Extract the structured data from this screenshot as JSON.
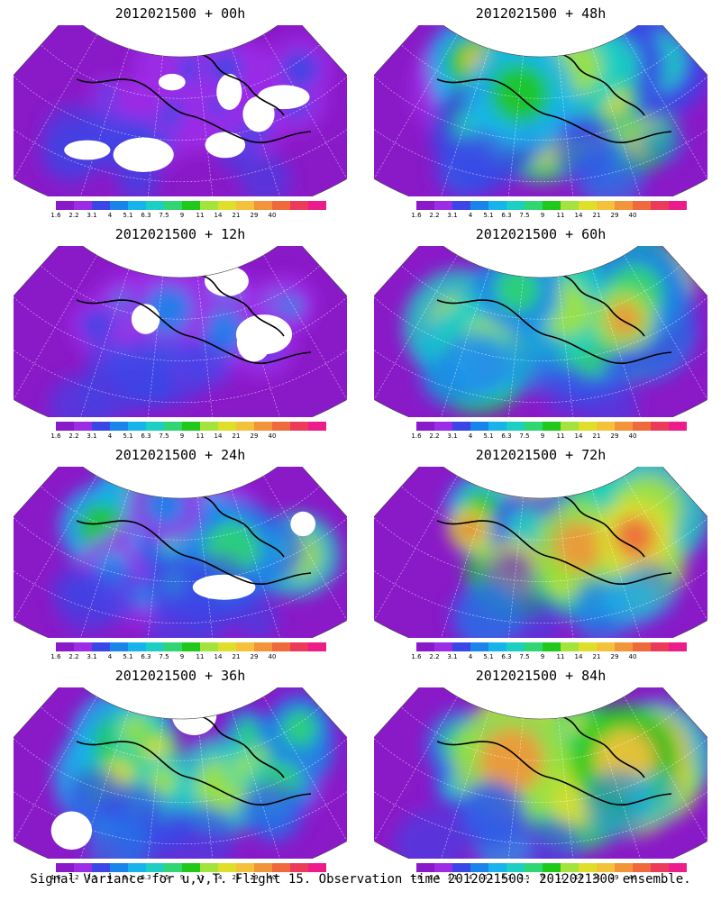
{
  "colorbar": {
    "labels": [
      "1.6",
      "2.2",
      "3.1",
      "4",
      "5.1",
      "6.3",
      "7.5",
      "9",
      "11",
      "14",
      "21",
      "29",
      "40"
    ],
    "colors": [
      "#8a19c8",
      "#9c2ce6",
      "#3a46e6",
      "#1b84ea",
      "#17b4ec",
      "#1ccfc2",
      "#2fd672",
      "#20c81c",
      "#a4e23c",
      "#dfdf2a",
      "#f4c23a",
      "#f2953a",
      "#ee6a3c",
      "#ec3a5a",
      "#ec1c8a"
    ]
  },
  "panels": [
    {
      "title": "2012021500 + 00h",
      "col": 0,
      "row": 0,
      "intensity": 0.15,
      "missing": "high"
    },
    {
      "title": "2012021500 + 12h",
      "col": 0,
      "row": 1,
      "intensity": 0.35,
      "missing": "medium"
    },
    {
      "title": "2012021500 + 24h",
      "col": 0,
      "row": 2,
      "intensity": 0.55,
      "missing": "low"
    },
    {
      "title": "2012021500 + 36h",
      "col": 0,
      "row": 3,
      "intensity": 0.7,
      "missing": "low"
    },
    {
      "title": "2012021500 + 48h",
      "col": 1,
      "row": 0,
      "intensity": 0.75,
      "missing": "none"
    },
    {
      "title": "2012021500 + 60h",
      "col": 1,
      "row": 1,
      "intensity": 0.85,
      "missing": "none"
    },
    {
      "title": "2012021500 + 72h",
      "col": 1,
      "row": 2,
      "intensity": 0.9,
      "missing": "none"
    },
    {
      "title": "2012021500 + 84h",
      "col": 1,
      "row": 3,
      "intensity": 0.95,
      "missing": "none"
    }
  ],
  "footer": "Signal Variance for u,v,T. Flight 15. Observation time 2012021500. 2012021300 ensemble."
}
